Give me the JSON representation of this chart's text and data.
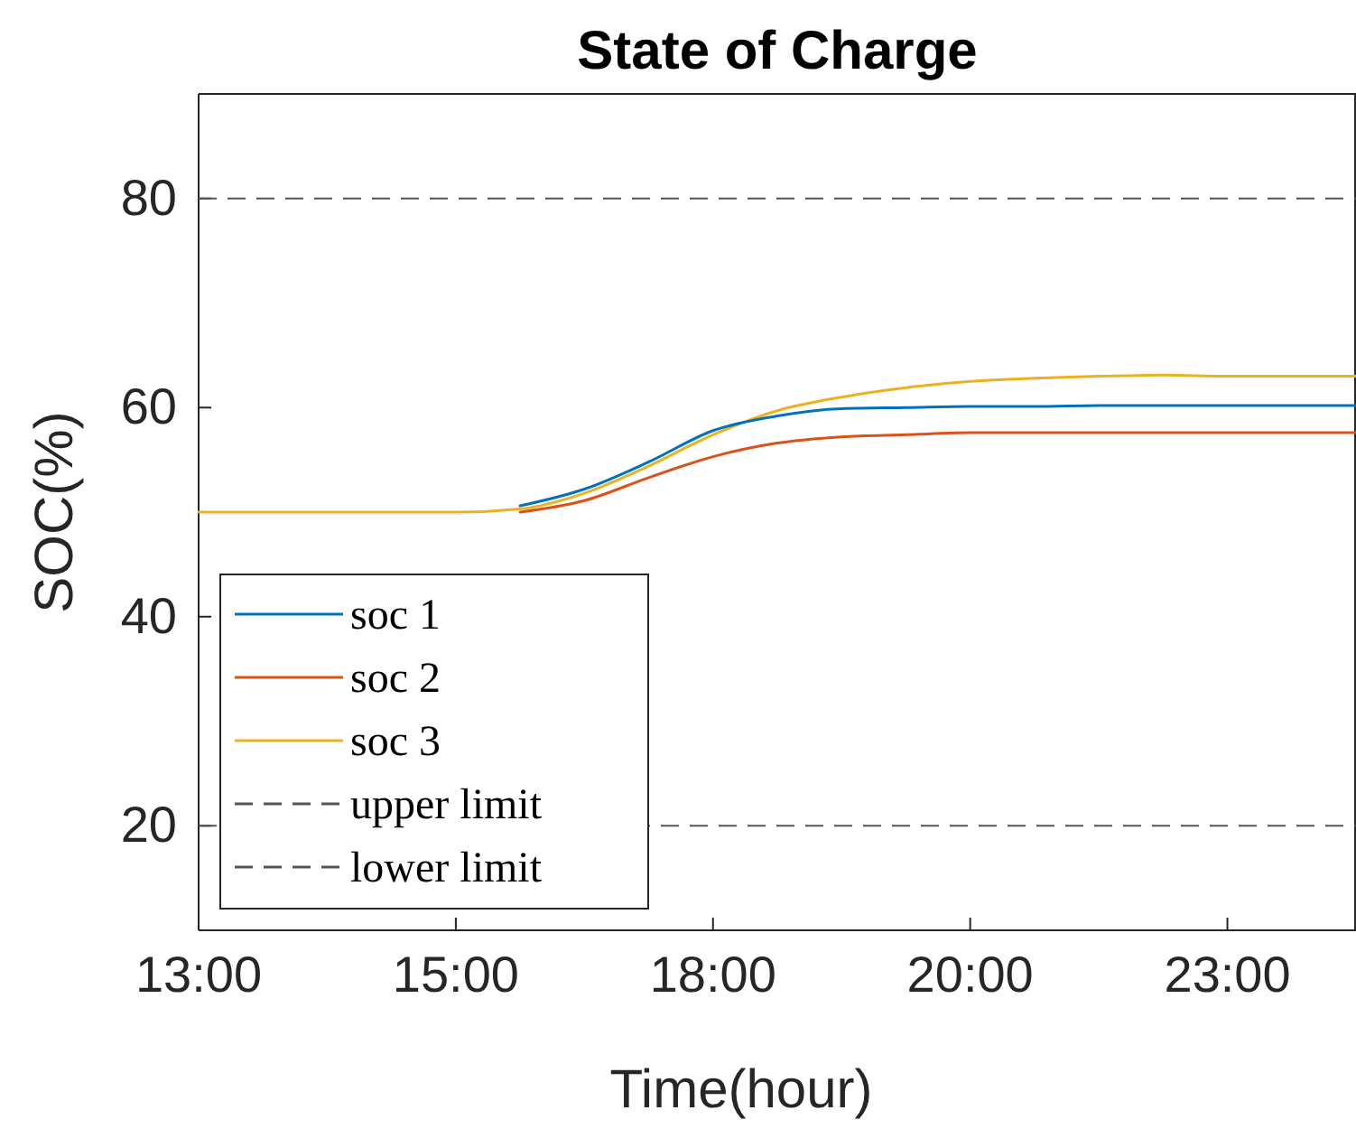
{
  "chart_data": {
    "type": "line",
    "title": "State of Charge",
    "xlabel": "Time(hour)",
    "ylabel": "SOC(%)",
    "categories": [
      "13:00",
      null,
      null,
      null,
      "15:00",
      null,
      null,
      null,
      "18:00",
      null,
      null,
      null,
      "20:00",
      null,
      null,
      null,
      "23:00",
      null,
      null
    ],
    "series": [
      {
        "name": "soc 1",
        "color": "#0072bd",
        "values": [
          null,
          null,
          null,
          null,
          null,
          50.6,
          52.2,
          54.8,
          57.8,
          59.2,
          59.9,
          60,
          60.1,
          60.1,
          60.2,
          60.2,
          60.2,
          60.2,
          60.2
        ]
      },
      {
        "name": "soc 2",
        "color": "#d95319",
        "values": [
          null,
          null,
          null,
          null,
          null,
          50,
          51.1,
          53.3,
          55.3,
          56.6,
          57.2,
          57.4,
          57.6,
          57.6,
          57.6,
          57.6,
          57.6,
          57.6,
          57.6
        ]
      },
      {
        "name": "soc 3",
        "color": "#edb120",
        "values": [
          50,
          50,
          50,
          50,
          50,
          50.3,
          51.8,
          54.4,
          57.4,
          59.7,
          61,
          61.9,
          62.5,
          62.8,
          63,
          63.1,
          63,
          63,
          63
        ]
      }
    ],
    "ref_lines": [
      {
        "axis": "y",
        "value": 80,
        "label": "upper limit",
        "color": "#555555",
        "line_style": "dashed"
      },
      {
        "axis": "y",
        "value": 20,
        "label": "lower limit",
        "color": "#555555",
        "line_style": "dashed"
      }
    ],
    "ylim": [
      10,
      90
    ],
    "yticks": [
      20,
      40,
      60,
      80
    ],
    "grid": false,
    "legend": "bottom left",
    "line_style": "solid"
  }
}
